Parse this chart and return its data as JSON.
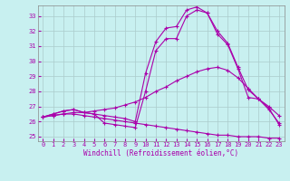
{
  "xlabel": "Windchill (Refroidissement éolien,°C)",
  "bg_color": "#c8f0f0",
  "line_color": "#aa00aa",
  "grid_color": "#aacccc",
  "spine_color": "#888888",
  "xlim": [
    -0.5,
    23.5
  ],
  "ylim": [
    24.7,
    33.7
  ],
  "yticks": [
    25,
    26,
    27,
    28,
    29,
    30,
    31,
    32,
    33
  ],
  "xticks": [
    0,
    1,
    2,
    3,
    4,
    5,
    6,
    7,
    8,
    9,
    10,
    11,
    12,
    13,
    14,
    15,
    16,
    17,
    18,
    19,
    20,
    21,
    22,
    23
  ],
  "line1_x": [
    0,
    1,
    2,
    3,
    4,
    5,
    6,
    7,
    8,
    9,
    10,
    11,
    12,
    13,
    14,
    15,
    16,
    17,
    18,
    19,
    20,
    21,
    22,
    23
  ],
  "line1_y": [
    26.3,
    26.4,
    26.5,
    26.5,
    26.4,
    26.3,
    26.2,
    26.1,
    26.0,
    25.9,
    25.8,
    25.7,
    25.6,
    25.5,
    25.4,
    25.3,
    25.2,
    25.1,
    25.1,
    25.0,
    25.0,
    25.0,
    24.9,
    24.9
  ],
  "line2_x": [
    0,
    1,
    2,
    3,
    4,
    5,
    6,
    7,
    8,
    9,
    10,
    11,
    12,
    13,
    14,
    15,
    16,
    17,
    18,
    19,
    20,
    21,
    22,
    23
  ],
  "line2_y": [
    26.3,
    26.4,
    26.5,
    26.6,
    26.6,
    26.7,
    26.8,
    26.9,
    27.1,
    27.3,
    27.6,
    28.0,
    28.3,
    28.7,
    29.0,
    29.3,
    29.5,
    29.6,
    29.4,
    28.9,
    28.2,
    27.5,
    27.0,
    26.4
  ],
  "line3_x": [
    0,
    1,
    2,
    3,
    4,
    5,
    6,
    7,
    8,
    9,
    10,
    11,
    12,
    13,
    14,
    15,
    16,
    17,
    18,
    19,
    20,
    21,
    22,
    23
  ],
  "line3_y": [
    26.3,
    26.5,
    26.7,
    26.8,
    26.6,
    26.5,
    26.4,
    26.3,
    26.2,
    26.0,
    29.2,
    31.3,
    32.2,
    32.3,
    33.4,
    33.6,
    33.2,
    32.0,
    31.2,
    29.6,
    28.1,
    27.5,
    26.8,
    25.9
  ],
  "line4_x": [
    0,
    1,
    2,
    3,
    4,
    5,
    6,
    7,
    8,
    9,
    10,
    11,
    12,
    13,
    14,
    15,
    16,
    17,
    18,
    19,
    20,
    21,
    22,
    23
  ],
  "line4_y": [
    26.3,
    26.5,
    26.7,
    26.8,
    26.6,
    26.5,
    25.9,
    25.8,
    25.7,
    25.6,
    28.0,
    30.7,
    31.5,
    31.5,
    33.0,
    33.4,
    33.2,
    31.8,
    31.1,
    29.5,
    27.6,
    27.5,
    26.9,
    25.8
  ]
}
